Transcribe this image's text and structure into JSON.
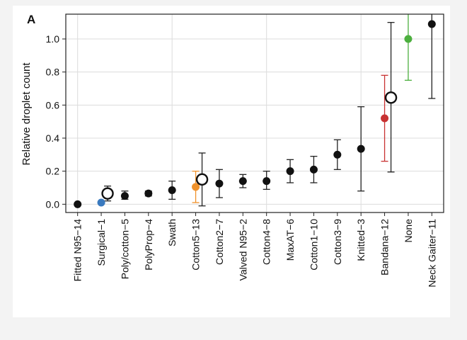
{
  "chart_data": {
    "type": "scatter",
    "panel_label": "A",
    "title": "",
    "xlabel": "",
    "ylabel": "Relative droplet count",
    "ylim": [
      -0.05,
      1.15
    ],
    "y_ticks": [
      "0.0",
      "0.2",
      "0.4",
      "0.6",
      "0.8",
      "1.0"
    ],
    "grid": true,
    "categories": [
      "Fitted N95−14",
      "Surgical−1",
      "Poly/cotton−5",
      "PolyProp−4",
      "Swath",
      "Cotton5−13",
      "Cotton2−7",
      "Valved N95−2",
      "Cotton4−8",
      "MaxAT−6",
      "Cotton1−10",
      "Cotton3−9",
      "Knitted−3",
      "Bandana−12",
      "None",
      "Neck Gaiter−11"
    ],
    "series": [
      {
        "marker": "filled",
        "values": [
          0.0,
          0.01,
          0.05,
          0.065,
          0.085,
          0.105,
          0.125,
          0.14,
          0.14,
          0.2,
          0.21,
          0.3,
          0.335,
          0.52,
          1.0,
          1.09
        ],
        "err_low": [
          0.0,
          0.005,
          0.03,
          0.05,
          0.03,
          0.01,
          0.04,
          0.1,
          0.09,
          0.13,
          0.13,
          0.21,
          0.08,
          0.26,
          0.75,
          0.64
        ],
        "err_high": [
          0.0,
          0.015,
          0.08,
          0.08,
          0.14,
          0.2,
          0.21,
          0.18,
          0.2,
          0.27,
          0.29,
          0.39,
          0.59,
          0.78,
          1.15,
          1.15
        ],
        "colors": [
          "#111111",
          "#3a7abf",
          "#111111",
          "#111111",
          "#111111",
          "#f0922b",
          "#111111",
          "#111111",
          "#111111",
          "#111111",
          "#111111",
          "#111111",
          "#111111",
          "#c83232",
          "#4caf3e",
          "#111111"
        ]
      },
      {
        "marker": "open",
        "points": [
          {
            "category": "Surgical−1",
            "value": 0.065,
            "err_low": 0.02,
            "err_high": 0.11
          },
          {
            "category": "Cotton5−13",
            "value": 0.15,
            "err_low": -0.01,
            "err_high": 0.31
          },
          {
            "category": "Bandana−12",
            "value": 0.645,
            "err_low": 0.195,
            "err_high": 1.1
          }
        ]
      }
    ]
  }
}
